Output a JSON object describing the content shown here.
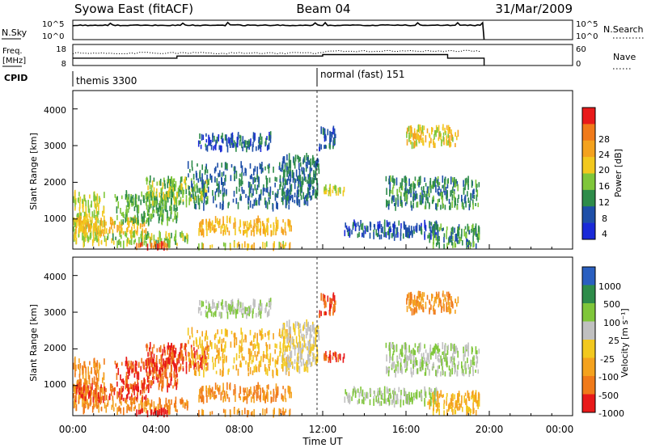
{
  "header": {
    "station": "Syowa East (fitACF)",
    "beam": "Beam 04",
    "date": "31/Mar/2009"
  },
  "strip": {
    "nsky_label": "N.Sky",
    "nsearch_label": "N.Search",
    "nsky_ticks": [
      "10^5",
      "10^0"
    ],
    "nsearch_ticks": [
      "10^5",
      "10^0"
    ],
    "freq_label_1": "Freq.",
    "freq_label_2": "[MHz]",
    "freq_ticks": [
      "18",
      "8"
    ],
    "nave_label": "Nave",
    "nave_ticks": [
      "60",
      "0"
    ],
    "cpid_label": "CPID",
    "cpid_modes": [
      {
        "name": "themis 3300",
        "start_hour": 0.0,
        "end_hour": 12.0
      },
      {
        "name": "normal (fast) 151",
        "start_hour": 12.0,
        "end_hour": 19.75
      }
    ]
  },
  "panels": {
    "power": {
      "ylabel": "Slant Range [km]",
      "cbar_label": "Power [dB]",
      "cbar_ticks": [
        "28",
        "24",
        "20",
        "16",
        "12",
        "8",
        "4"
      ],
      "cbar_colors": [
        "#e81a1a",
        "#f07a1a",
        "#f4a21e",
        "#f2c81e",
        "#7fc63a",
        "#2e8c4a",
        "#1e4fa8",
        "#1a2ad8"
      ]
    },
    "velocity": {
      "ylabel": "Slant Range [km]",
      "cbar_label": "Velocity [m s⁻¹]",
      "cbar_ticks": [
        "1000",
        "500",
        "100",
        "25",
        "-25",
        "-100",
        "-500",
        "-1000"
      ],
      "cbar_colors": [
        "#2a5fc0",
        "#2e8c4a",
        "#7fc63a",
        "#c0c0c0",
        "#f2c81e",
        "#f4a21e",
        "#f07a1a",
        "#e81a1a"
      ]
    }
  },
  "axes": {
    "xlabel": "Time UT",
    "x_ticks": [
      "00:00",
      "04:00",
      "08:00",
      "12:00",
      "16:00",
      "20:00",
      "00:00"
    ],
    "y_ticks": [
      "4000",
      "3000",
      "2000",
      "1000"
    ]
  },
  "chart_data": {
    "type": "heatmap",
    "x_unit": "hours UT",
    "xlim": [
      0,
      24
    ],
    "ylim": [
      180,
      4500
    ],
    "nsky_level_log10": 3.7,
    "freq_schedule": [
      {
        "start_hour": 0.0,
        "end_hour": 5.0,
        "mhz": 11.5
      },
      {
        "start_hour": 5.0,
        "end_hour": 12.0,
        "mhz": 12.5
      },
      {
        "start_hour": 12.0,
        "end_hour": 18.0,
        "mhz": 13.2
      },
      {
        "start_hour": 18.0,
        "end_hour": 19.75,
        "mhz": 11.5
      }
    ],
    "echo_regions": [
      {
        "x": [
          0.0,
          1.5
        ],
        "y": [
          300,
          1700
        ],
        "v": 16,
        "vel": -100
      },
      {
        "x": [
          0.0,
          3.5
        ],
        "y": [
          600,
          1000
        ],
        "v": 20,
        "vel": -500
      },
      {
        "x": [
          1.5,
          5.5
        ],
        "y": [
          300,
          600
        ],
        "v": 14,
        "vel": -100
      },
      {
        "x": [
          3.0,
          4.5
        ],
        "y": [
          230,
          320
        ],
        "v": 27,
        "vel": -1000
      },
      {
        "x": [
          2.0,
          5.0
        ],
        "y": [
          900,
          1700
        ],
        "v": 12,
        "vel": -500
      },
      {
        "x": [
          3.5,
          6.5
        ],
        "y": [
          1400,
          2100
        ],
        "v": 14,
        "vel": -500
      },
      {
        "x": [
          6.0,
          10.5
        ],
        "y": [
          600,
          1000
        ],
        "v": 20,
        "vel": -100
      },
      {
        "x": [
          6.0,
          10.5
        ],
        "y": [
          230,
          320
        ],
        "v": 18,
        "vel": -100
      },
      {
        "x": [
          5.5,
          10.5
        ],
        "y": [
          1300,
          2500
        ],
        "v": 8,
        "vel": -25
      },
      {
        "x": [
          6.0,
          9.5
        ],
        "y": [
          2900,
          3300
        ],
        "v": 6,
        "vel": 100
      },
      {
        "x": [
          10.0,
          11.8
        ],
        "y": [
          1400,
          2700
        ],
        "v": 8,
        "vel": 25
      },
      {
        "x": [
          11.8,
          12.6
        ],
        "y": [
          2900,
          3500
        ],
        "v": 6,
        "vel": -500
      },
      {
        "x": [
          12.0,
          13.0
        ],
        "y": [
          1700,
          1900
        ],
        "v": 16,
        "vel": -500
      },
      {
        "x": [
          13.0,
          17.5
        ],
        "y": [
          500,
          900
        ],
        "v": 6,
        "vel": 100
      },
      {
        "x": [
          15.0,
          19.5
        ],
        "y": [
          1300,
          2100
        ],
        "v": 10,
        "vel": 100
      },
      {
        "x": [
          17.0,
          19.5
        ],
        "y": [
          250,
          800
        ],
        "v": 10,
        "vel": -25
      },
      {
        "x": [
          16.0,
          18.5
        ],
        "y": [
          3000,
          3500
        ],
        "v": 18,
        "vel": -100
      }
    ]
  }
}
